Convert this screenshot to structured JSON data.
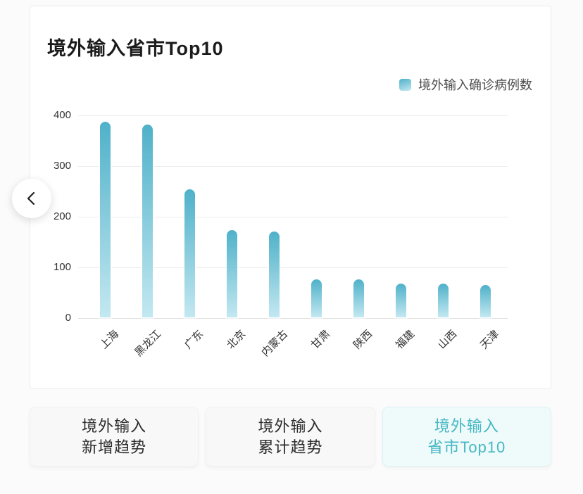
{
  "page": {
    "title": "境外输入省市Top10"
  },
  "legend": {
    "label": "境外输入确诊病例数"
  },
  "chart_data": {
    "type": "bar",
    "title": "境外输入省市Top10",
    "series_name": "境外输入确诊病例数",
    "categories": [
      "上海",
      "黑龙江",
      "广东",
      "北京",
      "内蒙古",
      "甘肃",
      "陕西",
      "福建",
      "山西",
      "天津"
    ],
    "values": [
      386,
      381,
      253,
      172,
      170,
      75,
      75,
      66,
      66,
      64
    ],
    "xlabel": "",
    "ylabel": "",
    "ylim": [
      0,
      400
    ],
    "yticks": [
      0,
      100,
      200,
      300,
      400
    ],
    "grid": true,
    "legend_position": "top-right",
    "bar_color_top": "#4fb1c9",
    "bar_color_bottom": "#c3e8f1",
    "x_label_rotation": 45
  },
  "nav": {
    "back_icon": "chevron-left"
  },
  "tabs": [
    {
      "line1": "境外输入",
      "line2": "新增趋势",
      "active": false
    },
    {
      "line1": "境外输入",
      "line2": "累计趋势",
      "active": false
    },
    {
      "line1": "境外输入",
      "line2": "省市Top10",
      "active": true
    }
  ],
  "colors": {
    "accent_teal": "#45b8c4",
    "active_tab_bg": "#effafa",
    "card_bg": "#ffffff"
  }
}
